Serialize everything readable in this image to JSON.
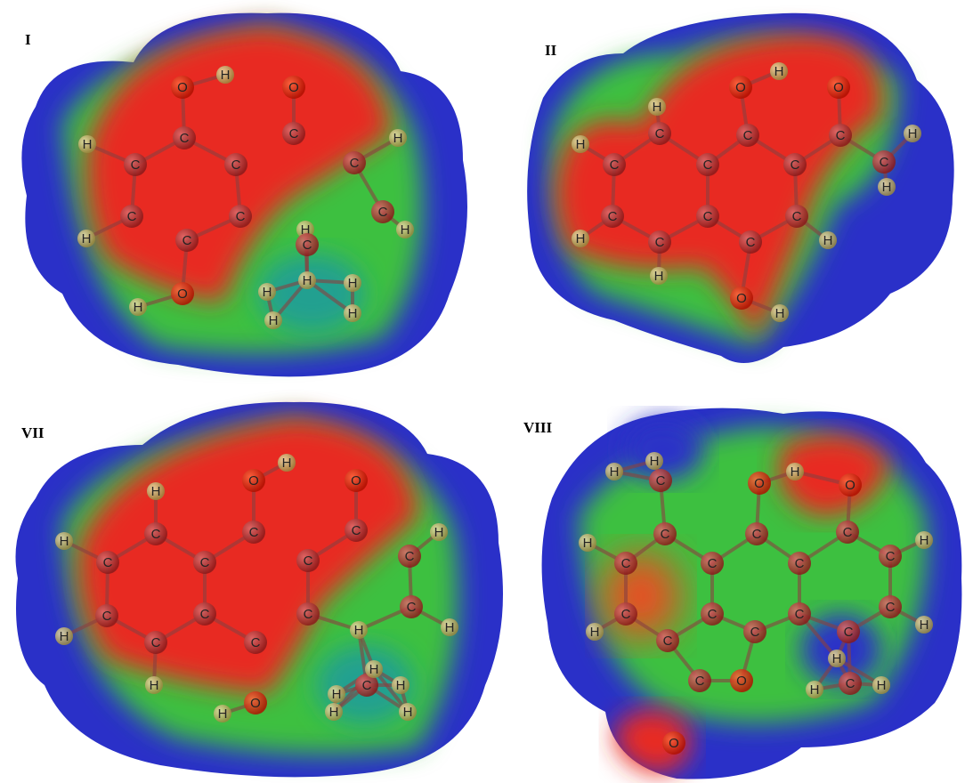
{
  "panels": [
    {
      "label": "I",
      "atoms": [
        "O",
        "H",
        "O",
        "C",
        "C",
        "H",
        "C",
        "C",
        "C",
        "H",
        "C",
        "C",
        "C",
        "H",
        "C",
        "H",
        "C",
        "H",
        "O",
        "H",
        "H",
        "H",
        "H",
        "H",
        "H"
      ]
    },
    {
      "label": "II",
      "atoms": [
        "O",
        "H",
        "O",
        "H",
        "C",
        "C",
        "C",
        "H",
        "H",
        "C",
        "C",
        "C",
        "C",
        "H",
        "C",
        "C",
        "C",
        "H",
        "C",
        "C",
        "H",
        "H",
        "O",
        "H"
      ]
    },
    {
      "label": "VII",
      "atoms": [
        "O",
        "H",
        "O",
        "H",
        "C",
        "C",
        "C",
        "H",
        "H",
        "C",
        "C",
        "C",
        "C",
        "C",
        "C",
        "C",
        "C",
        "H",
        "H",
        "C",
        "C",
        "H",
        "H",
        "O",
        "H",
        "H",
        "C",
        "H",
        "H",
        "H",
        "H"
      ]
    },
    {
      "label": "VIII",
      "atoms": [
        "H",
        "H",
        "O",
        "H",
        "O",
        "C",
        "C",
        "C",
        "C",
        "H",
        "H",
        "C",
        "C",
        "C",
        "C",
        "C",
        "C",
        "C",
        "C",
        "H",
        "H",
        "C",
        "C",
        "C",
        "C",
        "O",
        "H",
        "C",
        "H",
        "H",
        "O"
      ]
    }
  ]
}
